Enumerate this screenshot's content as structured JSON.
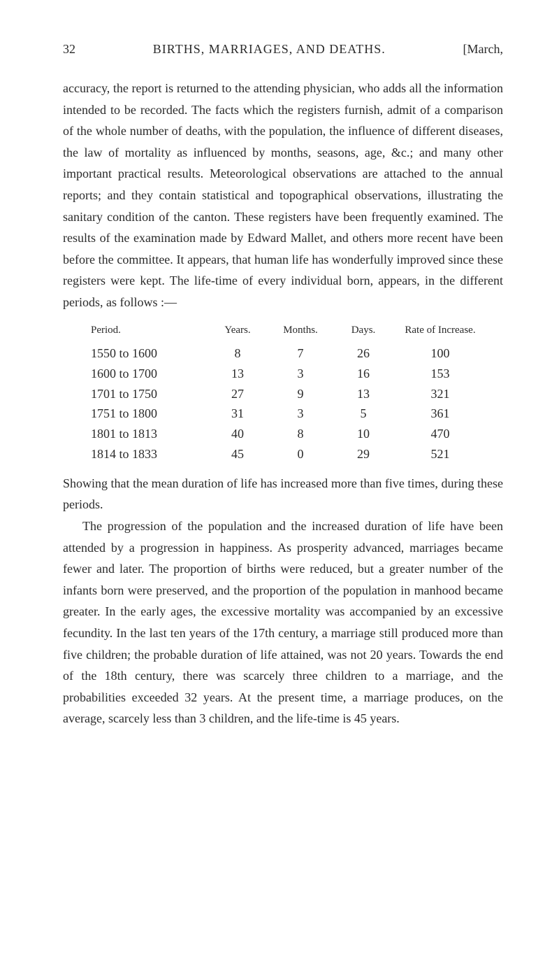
{
  "header": {
    "page_number": "32",
    "title": "BIRTHS, MARRIAGES, AND DEATHS.",
    "date": "[March,"
  },
  "paragraphs": {
    "p1": "accuracy, the report is returned to the attending physician, who adds all the information intended to be recorded. The facts which the registers furnish, admit of a comparison of the whole number of deaths, with the population, the influence of different diseases, the law of mortality as influenced by months, seasons, age, &c.; and many other important practical results. Meteorological observations are attached to the annual reports; and they contain statistical and topographical observations, illustrating the sanitary condition of the canton. These registers have been frequently examined. The results of the examination made by Edward Mallet, and others more recent have been before the committee. It appears, that human life has wonderfully improved since these registers were kept. The life-time of every individual born, appears, in the different periods, as follows :—",
    "p2": "Showing that the mean duration of life has increased more than five times, during these periods.",
    "p3": "The progression of the population and the increased duration of life have been attended by a progression in happiness. As prosperity advanced, marriages became fewer and later. The proportion of births were reduced, but a greater number of the infants born were preserved, and the proportion of the population in manhood became greater. In the early ages, the excessive mortality was accompanied by an excessive fecundity. In the last ten years of the 17th century, a marriage still produced more than five children; the probable duration of life attained, was not 20 years. Towards the end of the 18th century, there was scarcely three children to a marriage, and the probabilities exceeded 32 years. At the present time, a marriage produces, on the average, scarcely less than 3 children, and the life-time is 45 years."
  },
  "table": {
    "headers": {
      "period": "Period.",
      "years": "Years.",
      "months": "Months.",
      "days": "Days.",
      "rate": "Rate of Increase."
    },
    "rows": [
      {
        "period": "1550 to 1600",
        "years": "8",
        "months": "7",
        "days": "26",
        "rate": "100"
      },
      {
        "period": "1600 to 1700",
        "years": "13",
        "months": "3",
        "days": "16",
        "rate": "153"
      },
      {
        "period": "1701 to 1750",
        "years": "27",
        "months": "9",
        "days": "13",
        "rate": "321"
      },
      {
        "period": "1751 to 1800",
        "years": "31",
        "months": "3",
        "days": "5",
        "rate": "361"
      },
      {
        "period": "1801 to 1813",
        "years": "40",
        "months": "8",
        "days": "10",
        "rate": "470"
      },
      {
        "period": "1814 to 1833",
        "years": "45",
        "months": "0",
        "days": "29",
        "rate": "521"
      }
    ]
  },
  "styling": {
    "background_color": "#ffffff",
    "text_color": "#2a2a2a",
    "body_fontsize": 18,
    "header_fontsize": 18,
    "table_header_fontsize": 15,
    "line_height": 1.7,
    "font_family": "Georgia, 'Times New Roman', serif"
  }
}
